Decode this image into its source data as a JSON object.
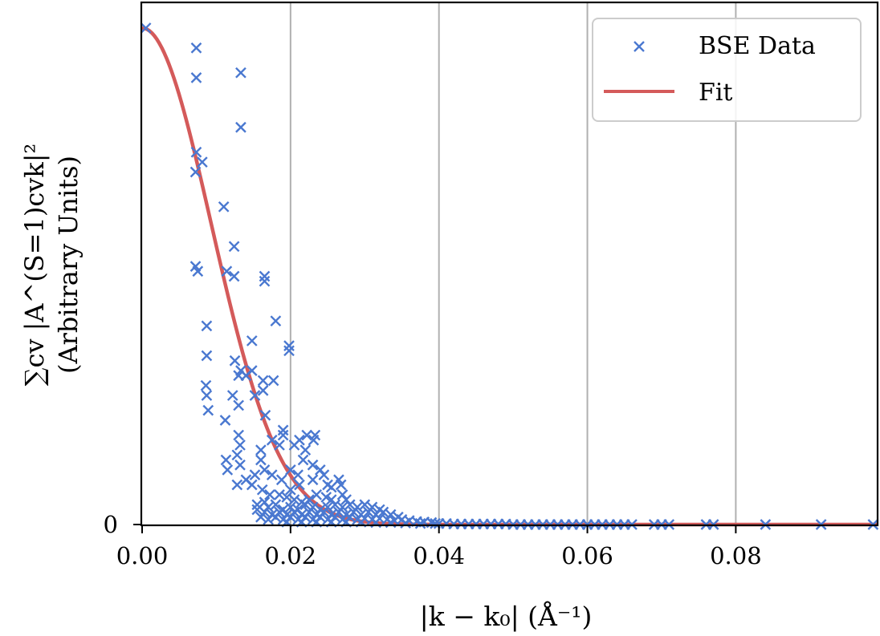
{
  "chart_data": {
    "type": "scatter",
    "title": "",
    "xlabel": "|k − k₀| (Å⁻¹)",
    "ylabel_line1": "∑cv |A^(S=1)cvk|²",
    "ylabel_line2": "(Arbitrary Units)",
    "xlim": [
      0.0,
      0.099
    ],
    "ylim": [
      0,
      1.05
    ],
    "x_ticks": [
      0.0,
      0.02,
      0.04,
      0.06,
      0.08
    ],
    "x_tick_labels": [
      "0.00",
      "0.02",
      "0.04",
      "0.06",
      "0.08"
    ],
    "y_ticks": [
      0
    ],
    "y_tick_labels": [
      "0"
    ],
    "grid": "vertical",
    "legend_position": "top-right",
    "series": [
      {
        "name": "BSE Data",
        "kind": "scatter",
        "marker": "x",
        "color": "#4a78d0",
        "points": [
          [
            0.0005,
            1.0
          ],
          [
            0.0073,
            0.96
          ],
          [
            0.0073,
            0.9
          ],
          [
            0.0073,
            0.75
          ],
          [
            0.0072,
            0.71
          ],
          [
            0.0081,
            0.73
          ],
          [
            0.0072,
            0.52
          ],
          [
            0.0075,
            0.51
          ],
          [
            0.0087,
            0.4
          ],
          [
            0.0087,
            0.34
          ],
          [
            0.0086,
            0.28
          ],
          [
            0.0087,
            0.26
          ],
          [
            0.0089,
            0.23
          ],
          [
            0.011,
            0.64
          ],
          [
            0.0124,
            0.56
          ],
          [
            0.0114,
            0.51
          ],
          [
            0.0124,
            0.5
          ],
          [
            0.0133,
            0.91
          ],
          [
            0.0133,
            0.8
          ],
          [
            0.0112,
            0.21
          ],
          [
            0.0125,
            0.33
          ],
          [
            0.013,
            0.3
          ],
          [
            0.0122,
            0.26
          ],
          [
            0.013,
            0.24
          ],
          [
            0.0133,
            0.31
          ],
          [
            0.014,
            0.3
          ],
          [
            0.0148,
            0.31
          ],
          [
            0.0148,
            0.37
          ],
          [
            0.0152,
            0.26
          ],
          [
            0.0163,
            0.29
          ],
          [
            0.0163,
            0.27
          ],
          [
            0.0165,
            0.5
          ],
          [
            0.0165,
            0.49
          ],
          [
            0.018,
            0.41
          ],
          [
            0.0198,
            0.36
          ],
          [
            0.0198,
            0.35
          ],
          [
            0.0177,
            0.29
          ],
          [
            0.0166,
            0.22
          ],
          [
            0.013,
            0.18
          ],
          [
            0.0132,
            0.16
          ],
          [
            0.0128,
            0.14
          ],
          [
            0.0132,
            0.12
          ],
          [
            0.0113,
            0.13
          ],
          [
            0.0115,
            0.11
          ],
          [
            0.014,
            0.09
          ],
          [
            0.0128,
            0.08
          ],
          [
            0.0152,
            0.1
          ],
          [
            0.0148,
            0.08
          ],
          [
            0.016,
            0.13
          ],
          [
            0.0165,
            0.11
          ],
          [
            0.0175,
            0.1
          ],
          [
            0.0188,
            0.09
          ],
          [
            0.0162,
            0.07
          ],
          [
            0.0172,
            0.06
          ],
          [
            0.019,
            0.19
          ],
          [
            0.019,
            0.18
          ],
          [
            0.0175,
            0.17
          ],
          [
            0.0185,
            0.16
          ],
          [
            0.016,
            0.15
          ],
          [
            0.0212,
            0.17
          ],
          [
            0.0222,
            0.18
          ],
          [
            0.0231,
            0.17
          ],
          [
            0.0233,
            0.18
          ],
          [
            0.0205,
            0.16
          ],
          [
            0.022,
            0.15
          ],
          [
            0.0217,
            0.13
          ],
          [
            0.023,
            0.12
          ],
          [
            0.02,
            0.11
          ],
          [
            0.021,
            0.1
          ],
          [
            0.024,
            0.11
          ],
          [
            0.0245,
            0.1
          ],
          [
            0.023,
            0.09
          ],
          [
            0.025,
            0.08
          ],
          [
            0.0255,
            0.075
          ],
          [
            0.0265,
            0.09
          ],
          [
            0.0268,
            0.08
          ],
          [
            0.0212,
            0.08
          ],
          [
            0.02,
            0.07
          ],
          [
            0.0185,
            0.06
          ],
          [
            0.0195,
            0.055
          ],
          [
            0.0205,
            0.05
          ],
          [
            0.0215,
            0.045
          ],
          [
            0.0225,
            0.05
          ],
          [
            0.0235,
            0.06
          ],
          [
            0.0248,
            0.055
          ],
          [
            0.0255,
            0.05
          ],
          [
            0.027,
            0.06
          ],
          [
            0.0275,
            0.05
          ],
          [
            0.0165,
            0.045
          ],
          [
            0.0155,
            0.04
          ],
          [
            0.017,
            0.035
          ],
          [
            0.018,
            0.04
          ],
          [
            0.019,
            0.03
          ],
          [
            0.02,
            0.035
          ],
          [
            0.021,
            0.03
          ],
          [
            0.022,
            0.04
          ],
          [
            0.023,
            0.035
          ],
          [
            0.024,
            0.03
          ],
          [
            0.025,
            0.035
          ],
          [
            0.026,
            0.04
          ],
          [
            0.027,
            0.035
          ],
          [
            0.028,
            0.04
          ],
          [
            0.029,
            0.035
          ],
          [
            0.03,
            0.04
          ],
          [
            0.031,
            0.035
          ],
          [
            0.032,
            0.03
          ],
          [
            0.0155,
            0.03
          ],
          [
            0.0165,
            0.025
          ],
          [
            0.0175,
            0.02
          ],
          [
            0.0185,
            0.025
          ],
          [
            0.0195,
            0.02
          ],
          [
            0.0205,
            0.025
          ],
          [
            0.0215,
            0.02
          ],
          [
            0.0225,
            0.025
          ],
          [
            0.0235,
            0.02
          ],
          [
            0.0245,
            0.025
          ],
          [
            0.0255,
            0.02
          ],
          [
            0.0265,
            0.025
          ],
          [
            0.0275,
            0.02
          ],
          [
            0.0285,
            0.025
          ],
          [
            0.0295,
            0.02
          ],
          [
            0.0305,
            0.025
          ],
          [
            0.0315,
            0.02
          ],
          [
            0.0325,
            0.025
          ],
          [
            0.0335,
            0.02
          ],
          [
            0.0345,
            0.015
          ],
          [
            0.016,
            0.015
          ],
          [
            0.017,
            0.01
          ],
          [
            0.018,
            0.015
          ],
          [
            0.019,
            0.01
          ],
          [
            0.02,
            0.015
          ],
          [
            0.021,
            0.01
          ],
          [
            0.022,
            0.015
          ],
          [
            0.023,
            0.01
          ],
          [
            0.024,
            0.015
          ],
          [
            0.025,
            0.01
          ],
          [
            0.026,
            0.015
          ],
          [
            0.027,
            0.01
          ],
          [
            0.028,
            0.015
          ],
          [
            0.029,
            0.01
          ],
          [
            0.03,
            0.012
          ],
          [
            0.031,
            0.01
          ],
          [
            0.032,
            0.012
          ],
          [
            0.033,
            0.01
          ],
          [
            0.034,
            0.008
          ],
          [
            0.035,
            0.01
          ],
          [
            0.036,
            0.008
          ],
          [
            0.037,
            0.006
          ],
          [
            0.038,
            0.005
          ],
          [
            0.039,
            0.004
          ],
          [
            0.0195,
            0.005
          ],
          [
            0.0215,
            0.005
          ],
          [
            0.0235,
            0.005
          ],
          [
            0.0255,
            0.005
          ],
          [
            0.0275,
            0.005
          ],
          [
            0.0295,
            0.005
          ],
          [
            0.0315,
            0.004
          ],
          [
            0.0335,
            0.004
          ],
          [
            0.0355,
            0.003
          ],
          [
            0.0375,
            0.002
          ],
          [
            0.0395,
            0.002
          ],
          [
            0.04,
            0.002
          ],
          [
            0.041,
            0.002
          ],
          [
            0.042,
            0.001
          ],
          [
            0.043,
            0.001
          ],
          [
            0.044,
            0.001
          ],
          [
            0.045,
            0.001
          ],
          [
            0.046,
            0.001
          ],
          [
            0.047,
            0.001
          ],
          [
            0.048,
            0.001
          ],
          [
            0.049,
            0.001
          ],
          [
            0.05,
            0.0
          ],
          [
            0.051,
            0.0
          ],
          [
            0.052,
            0.0
          ],
          [
            0.053,
            0.0
          ],
          [
            0.054,
            0.0
          ],
          [
            0.055,
            0.0
          ],
          [
            0.056,
            0.0
          ],
          [
            0.057,
            0.0
          ],
          [
            0.058,
            0.0
          ],
          [
            0.059,
            0.0
          ],
          [
            0.06,
            0.0
          ],
          [
            0.061,
            0.0
          ],
          [
            0.062,
            0.0
          ],
          [
            0.063,
            0.0
          ],
          [
            0.064,
            0.0
          ],
          [
            0.065,
            0.0
          ],
          [
            0.066,
            0.0
          ],
          [
            0.069,
            0.0
          ],
          [
            0.07,
            0.0
          ],
          [
            0.071,
            0.0
          ],
          [
            0.076,
            0.0
          ],
          [
            0.077,
            0.0
          ],
          [
            0.084,
            0.0
          ],
          [
            0.0915,
            0.0
          ],
          [
            0.0985,
            0.0
          ]
        ]
      },
      {
        "name": "Fit",
        "kind": "line",
        "color": "#d45a5a",
        "model": "gaussian",
        "amplitude": 1.0,
        "sigma": 0.0093,
        "x_range": [
          0.0,
          0.099
        ]
      }
    ]
  }
}
